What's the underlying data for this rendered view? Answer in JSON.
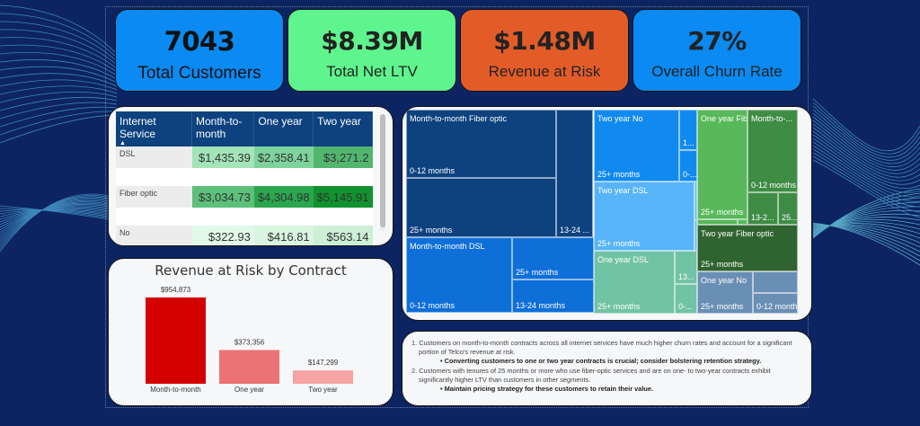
{
  "kpis": [
    {
      "value": "7043",
      "label": "Total Customers",
      "color": "#0a8af2"
    },
    {
      "value": "$8.39M",
      "label": "Total Net LTV",
      "color": "#5ff58e"
    },
    {
      "value": "$1.48M",
      "label": "Revenue at Risk",
      "color": "#e35c28"
    },
    {
      "value": "27%",
      "label": "Overall Churn Rate",
      "color": "#0a8af2"
    }
  ],
  "matrix": {
    "headers": [
      "Internet Service",
      "Month-to-month",
      "One year",
      "Two year"
    ],
    "sort_indicator": "▲",
    "rows": [
      {
        "label": "DSL",
        "values": [
          "$1,435.39",
          "$2,358.41",
          "$3,271.2"
        ],
        "colors": [
          "#a3e4b8",
          "#7ed39b",
          "#52b66f"
        ]
      },
      {
        "label": "Fiber optic",
        "values": [
          "$3,034.73",
          "$4,304.98",
          "$5,145.91"
        ],
        "colors": [
          "#5cbf7a",
          "#2aa64f",
          "#10922f"
        ]
      },
      {
        "label": "No",
        "values": [
          "$322.93",
          "$416.81",
          "$563.14"
        ],
        "colors": [
          "#e2f8e8",
          "#d9f5e0",
          "#ccf0d6"
        ]
      }
    ]
  },
  "chart_data": {
    "type": "bar",
    "title": "Revenue at Risk by Contract",
    "categories": [
      "Month-to-month",
      "One year",
      "Two year"
    ],
    "values": [
      954873,
      373356,
      147299
    ],
    "data_labels": [
      "$954,873",
      "$373,356",
      "$147,299"
    ],
    "colors": [
      "#d40000",
      "#ec7373",
      "#f6a3a3"
    ],
    "xlabel": "",
    "ylabel": "",
    "ylim": [
      0,
      954873
    ],
    "grid": false,
    "legend": "none"
  },
  "treemap": {
    "tiles": [
      {
        "group": "Month-to-month Fiber optic",
        "label": "0-12 months",
        "color": "#0d427f"
      },
      {
        "group": "",
        "label": "25+ months",
        "color": "#0d427f"
      },
      {
        "group": "",
        "label": "13-24 ...",
        "color": "#0d427f"
      },
      {
        "group": "Month-to-month DSL",
        "label": "0-12 months",
        "color": "#0f6fd8"
      },
      {
        "group": "",
        "label": "25+ months",
        "color": "#0f6fd8"
      },
      {
        "group": "",
        "label": "13-24 months",
        "color": "#0f6fd8"
      },
      {
        "group": "Two year No",
        "label": "25+ months",
        "color": "#118af0"
      },
      {
        "group": "",
        "label": "1...",
        "color": "#118af0"
      },
      {
        "group": "",
        "label": "0-...",
        "color": "#118af0"
      },
      {
        "group": "Two year DSL",
        "label": "25+ months",
        "color": "#58b4f8"
      },
      {
        "group": "",
        "label": "",
        "color": "#58b4f8"
      },
      {
        "group": "",
        "label": "",
        "color": "#58b4f8"
      },
      {
        "group": "One year DSL",
        "label": "25+ months",
        "color": "#71c3a5"
      },
      {
        "group": "",
        "label": "13...",
        "color": "#71c3a5"
      },
      {
        "group": "",
        "label": "0-...",
        "color": "#71c3a5"
      },
      {
        "group": "One year Fib...",
        "label": "25+ months",
        "color": "#58b85a"
      },
      {
        "group": "",
        "label": "",
        "color": "#58b85a"
      },
      {
        "group": "",
        "label": "",
        "color": "#58b85a"
      },
      {
        "group": "Month-to-...",
        "label": "0-12 months",
        "color": "#3f8c45"
      },
      {
        "group": "",
        "label": "13-2...",
        "color": "#3f8c45"
      },
      {
        "group": "",
        "label": "25...",
        "color": "#3f8c45"
      },
      {
        "group": "Two year Fiber optic",
        "label": "25+ months",
        "color": "#2f6430"
      },
      {
        "group": "One year No",
        "label": "25+ months",
        "color": "#6a8fb5"
      },
      {
        "group": "",
        "label": "",
        "color": "#6a8fb5"
      },
      {
        "group": "",
        "label": "0-12 months",
        "color": "#6a8fb5"
      }
    ]
  },
  "notes": {
    "items": [
      {
        "text": "1. Customers on month-to-month contracts across all internet services have much higher churn rates and account for a significant portion of Telco's revenue at risk.",
        "bullet": "• Converting customers to one or two year contracts is crucial; consider bolstering retention strategy."
      },
      {
        "text": "2. Customers with tenures of 25 months or more who use fiber-optic services and are on one- to two-year contracts exhibit significantly higher LTV than customers in other segments.",
        "bullet": "• Maintain pricing strategy for these customers to retain their value."
      }
    ]
  }
}
